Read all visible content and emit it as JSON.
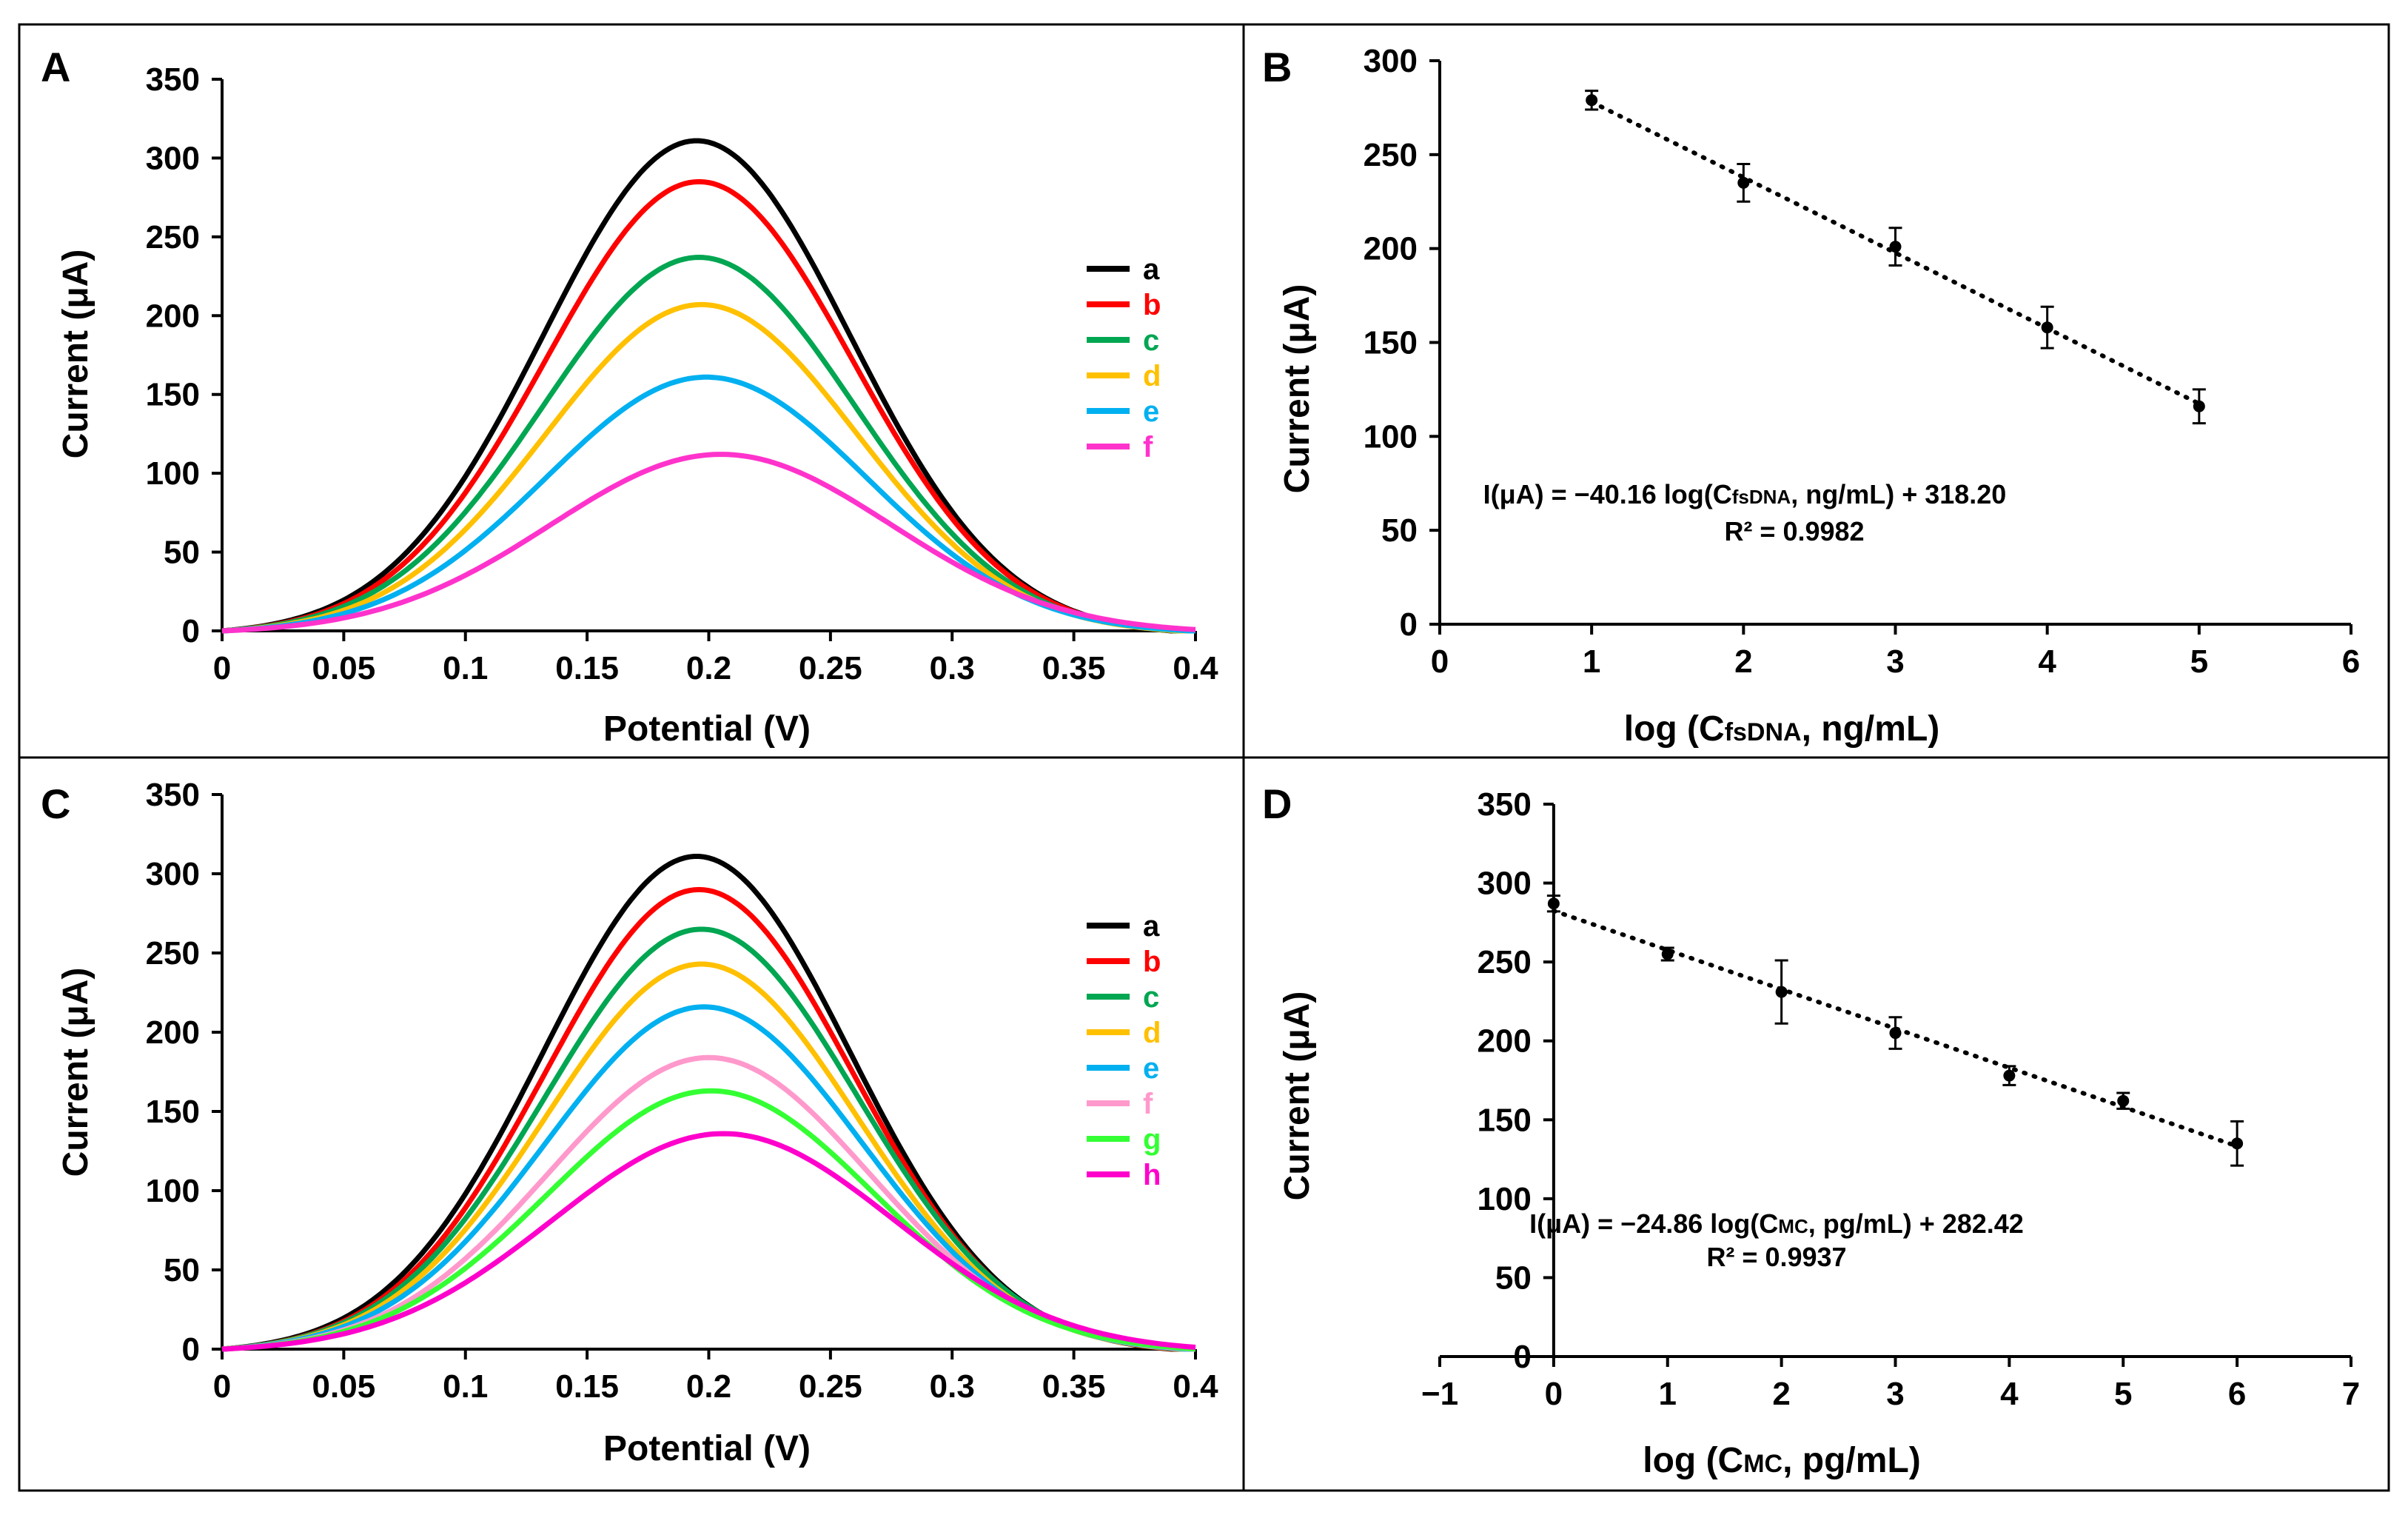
{
  "figure": {
    "panels": [
      {
        "id": "A",
        "letter": "A"
      },
      {
        "id": "B",
        "letter": "B"
      },
      {
        "id": "C",
        "letter": "C"
      },
      {
        "id": "D",
        "letter": "D"
      }
    ]
  },
  "chart_data": [
    {
      "panel": "A",
      "type": "line",
      "xlabel": "Potential (V)",
      "ylabel": "Current (μA)",
      "xlim": [
        0,
        0.4
      ],
      "ylim": [
        0,
        350
      ],
      "xticks": [
        0,
        0.05,
        0.1,
        0.15,
        0.2,
        0.25,
        0.3,
        0.35,
        0.4
      ],
      "xtick_labels": [
        "0",
        "0.05",
        "0.1",
        "0.15",
        "0.2",
        "0.25",
        "0.3",
        "0.35",
        "0.4"
      ],
      "yticks": [
        0,
        50,
        100,
        150,
        200,
        250,
        300,
        350
      ],
      "ytick_labels": [
        "0",
        "50",
        "100",
        "150",
        "200",
        "250",
        "300",
        "350"
      ],
      "legend_position": "right",
      "series": [
        {
          "name": "a",
          "color": "#000000",
          "peak_x": 0.195,
          "peak_y": 311,
          "width": 0.063
        },
        {
          "name": "b",
          "color": "#ff0000",
          "peak_x": 0.196,
          "peak_y": 285,
          "width": 0.063
        },
        {
          "name": "c",
          "color": "#00a651",
          "peak_x": 0.196,
          "peak_y": 237,
          "width": 0.064
        },
        {
          "name": "d",
          "color": "#ffc000",
          "peak_x": 0.197,
          "peak_y": 207,
          "width": 0.064
        },
        {
          "name": "e",
          "color": "#00b0f0",
          "peak_x": 0.199,
          "peak_y": 161,
          "width": 0.066
        },
        {
          "name": "f",
          "color": "#ff33cc",
          "peak_x": 0.205,
          "peak_y": 112,
          "width": 0.07
        }
      ]
    },
    {
      "panel": "B",
      "type": "scatter",
      "xlabel_parts": [
        "log (C",
        "fsDNA",
        ", ng/mL)"
      ],
      "ylabel": "Current (μA)",
      "xlim": [
        0,
        6
      ],
      "ylim": [
        0,
        300
      ],
      "xticks": [
        0,
        1,
        2,
        3,
        4,
        5,
        6
      ],
      "xtick_labels": [
        "0",
        "1",
        "2",
        "3",
        "4",
        "5",
        "6"
      ],
      "yticks": [
        0,
        50,
        100,
        150,
        200,
        250,
        300
      ],
      "ytick_labels": [
        "0",
        "50",
        "100",
        "150",
        "200",
        "250",
        "300"
      ],
      "points": [
        {
          "x": 1,
          "y": 279,
          "err": 5
        },
        {
          "x": 2,
          "y": 235,
          "err": 10
        },
        {
          "x": 3,
          "y": 201,
          "err": 10
        },
        {
          "x": 4,
          "y": 158,
          "err": 11
        },
        {
          "x": 5,
          "y": 116,
          "err": 9
        }
      ],
      "fit": {
        "slope": -40.16,
        "intercept": 318.2,
        "x_range": [
          1,
          5
        ]
      },
      "equation_parts": [
        "I(μA) = −40.16 log(C",
        "fsDNA",
        ", ng/mL) + 318.20"
      ],
      "r2_label": "R² = 0.9982"
    },
    {
      "panel": "C",
      "type": "line",
      "xlabel": "Potential (V)",
      "ylabel": "Current (μA)",
      "xlim": [
        0,
        0.4
      ],
      "ylim": [
        0,
        350
      ],
      "xticks": [
        0,
        0.05,
        0.1,
        0.15,
        0.2,
        0.25,
        0.3,
        0.35,
        0.4
      ],
      "xtick_labels": [
        "0",
        "0.05",
        "0.1",
        "0.15",
        "0.2",
        "0.25",
        "0.3",
        "0.35",
        "0.4"
      ],
      "yticks": [
        0,
        50,
        100,
        150,
        200,
        250,
        300,
        350
      ],
      "ytick_labels": [
        "0",
        "50",
        "100",
        "150",
        "200",
        "250",
        "300",
        "350"
      ],
      "legend_position": "right",
      "series": [
        {
          "name": "a",
          "color": "#000000",
          "peak_x": 0.195,
          "peak_y": 311,
          "width": 0.063
        },
        {
          "name": "b",
          "color": "#ff0000",
          "peak_x": 0.196,
          "peak_y": 290,
          "width": 0.063
        },
        {
          "name": "c",
          "color": "#00a651",
          "peak_x": 0.197,
          "peak_y": 265,
          "width": 0.064
        },
        {
          "name": "d",
          "color": "#ffc000",
          "peak_x": 0.197,
          "peak_y": 243,
          "width": 0.064
        },
        {
          "name": "e",
          "color": "#00b0f0",
          "peak_x": 0.198,
          "peak_y": 216,
          "width": 0.065
        },
        {
          "name": "f",
          "color": "#ff99cc",
          "peak_x": 0.2,
          "peak_y": 184,
          "width": 0.066
        },
        {
          "name": "g",
          "color": "#33ff33",
          "peak_x": 0.201,
          "peak_y": 163,
          "width": 0.067
        },
        {
          "name": "h",
          "color": "#ff00cc",
          "peak_x": 0.206,
          "peak_y": 136,
          "width": 0.07
        }
      ]
    },
    {
      "panel": "D",
      "type": "scatter",
      "xlabel_parts": [
        "log (C",
        "MC",
        ", pg/mL)"
      ],
      "ylabel": "Current (μA)",
      "xlim": [
        -1,
        7
      ],
      "ylim": [
        0,
        350
      ],
      "xticks": [
        -1,
        0,
        1,
        2,
        3,
        4,
        5,
        6,
        7
      ],
      "xtick_labels": [
        "−1",
        "0",
        "1",
        "2",
        "3",
        "4",
        "5",
        "6",
        "7"
      ],
      "yticks": [
        0,
        50,
        100,
        150,
        200,
        250,
        300,
        350
      ],
      "ytick_labels": [
        "0",
        "50",
        "100",
        "150",
        "200",
        "250",
        "300",
        "350"
      ],
      "points": [
        {
          "x": 0,
          "y": 287,
          "err": 5
        },
        {
          "x": 1,
          "y": 255,
          "err": 4
        },
        {
          "x": 2,
          "y": 231,
          "err": 20
        },
        {
          "x": 3,
          "y": 205,
          "err": 10
        },
        {
          "x": 4,
          "y": 178,
          "err": 6
        },
        {
          "x": 5,
          "y": 162,
          "err": 5
        },
        {
          "x": 6,
          "y": 135,
          "err": 14
        }
      ],
      "fit": {
        "slope": -24.86,
        "intercept": 282.42,
        "x_range": [
          0,
          6
        ]
      },
      "equation_parts": [
        "I(μA)  = −24.86 log(C",
        "MC",
        ", pg/mL) + 282.42"
      ],
      "r2_label": "R² = 0.9937"
    }
  ]
}
